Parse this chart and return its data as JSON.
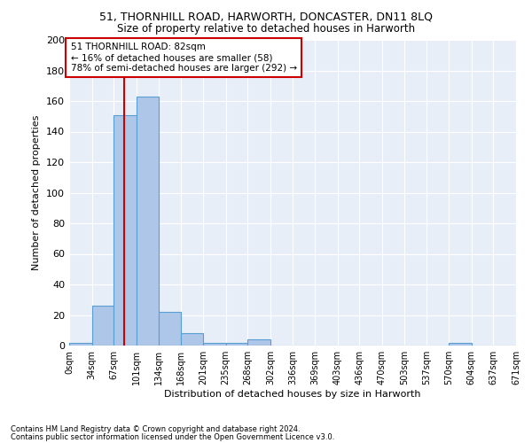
{
  "title1": "51, THORNHILL ROAD, HARWORTH, DONCASTER, DN11 8LQ",
  "title2": "Size of property relative to detached houses in Harworth",
  "xlabel": "Distribution of detached houses by size in Harworth",
  "ylabel": "Number of detached properties",
  "footnote1": "Contains HM Land Registry data © Crown copyright and database right 2024.",
  "footnote2": "Contains public sector information licensed under the Open Government Licence v3.0.",
  "annotation_line1": "51 THORNHILL ROAD: 82sqm",
  "annotation_line2": "← 16% of detached houses are smaller (58)",
  "annotation_line3": "78% of semi-detached houses are larger (292) →",
  "property_size": 82,
  "bin_edges": [
    0,
    34,
    67,
    101,
    134,
    168,
    201,
    235,
    268,
    302,
    336,
    369,
    403,
    436,
    470,
    503,
    537,
    570,
    604,
    637,
    671
  ],
  "bar_heights": [
    2,
    26,
    151,
    163,
    22,
    8,
    2,
    2,
    4,
    0,
    0,
    0,
    0,
    0,
    0,
    0,
    0,
    2,
    0,
    0
  ],
  "bar_color": "#aec6e8",
  "bar_edge_color": "#5a9fd4",
  "redline_color": "#cc0000",
  "annotation_box_color": "#cc0000",
  "background_color": "#e8eef8",
  "ylim": [
    0,
    200
  ],
  "yticks": [
    0,
    20,
    40,
    60,
    80,
    100,
    120,
    140,
    160,
    180,
    200
  ],
  "tick_labels": [
    "0sqm",
    "34sqm",
    "67sqm",
    "101sqm",
    "134sqm",
    "168sqm",
    "201sqm",
    "235sqm",
    "268sqm",
    "302sqm",
    "336sqm",
    "369sqm",
    "403sqm",
    "436sqm",
    "470sqm",
    "503sqm",
    "537sqm",
    "570sqm",
    "604sqm",
    "637sqm",
    "671sqm"
  ]
}
